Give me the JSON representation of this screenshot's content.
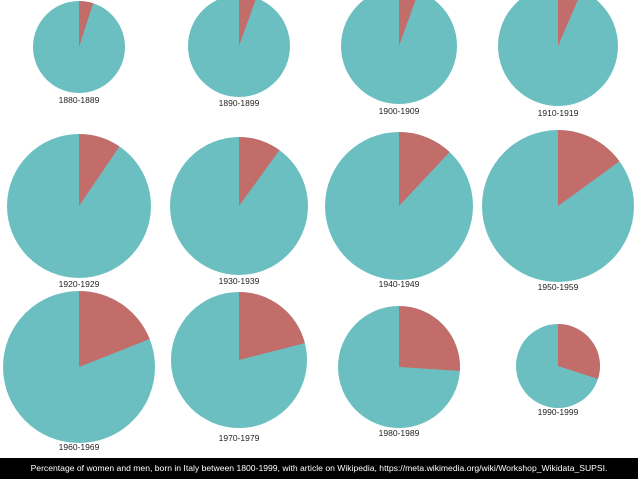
{
  "caption": "Percentage of women and men, born in Italy between 1800-1999, with article on Wikipedia, https://meta.wikimedia.org/wiki/Workshop_Wikidata_SUPSI.",
  "colors": {
    "men": "#6bbfc1",
    "women": "#c36d6b"
  },
  "chart_data": {
    "type": "pie",
    "series_order": [
      "women",
      "men"
    ],
    "pies": [
      {
        "label": "1880-1889",
        "women_pct": 5.0
      },
      {
        "label": "1890-1899",
        "women_pct": 5.5
      },
      {
        "label": "1900-1909",
        "women_pct": 5.5
      },
      {
        "label": "1910-1919",
        "women_pct": 6.5
      },
      {
        "label": "1920-1929",
        "women_pct": 9.5
      },
      {
        "label": "1930-1939",
        "women_pct": 10.0
      },
      {
        "label": "1940-1949",
        "women_pct": 12.0
      },
      {
        "label": "1950-1959",
        "women_pct": 15.0
      },
      {
        "label": "1960-1969",
        "women_pct": 19.0
      },
      {
        "label": "1970-1979",
        "women_pct": 21.0
      },
      {
        "label": "1980-1989",
        "women_pct": 26.0
      },
      {
        "label": "1990-1999",
        "women_pct": 30.0
      }
    ]
  }
}
